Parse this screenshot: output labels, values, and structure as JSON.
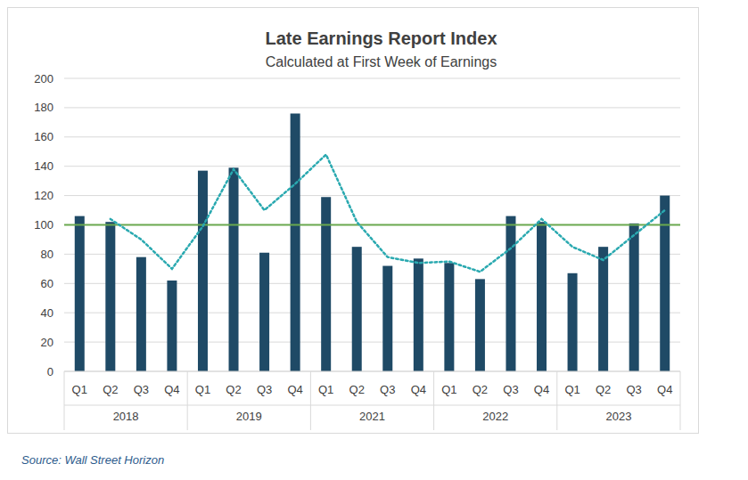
{
  "chart_data": {
    "type": "bar",
    "title": "Late Earnings Report Index",
    "subtitle": "Calculated at First Week of Earnings",
    "source": "Source: Wall Street Horizon",
    "categories": [
      "Q1",
      "Q2",
      "Q3",
      "Q4",
      "Q1",
      "Q2",
      "Q3",
      "Q4",
      "Q1",
      "Q2",
      "Q3",
      "Q4",
      "Q1",
      "Q2",
      "Q3",
      "Q4",
      "Q1",
      "Q2",
      "Q3",
      "Q4"
    ],
    "groups": [
      "2018",
      "2019",
      "2021",
      "2022",
      "2023"
    ],
    "series": [
      {
        "type": "bar",
        "color": "#1f4a66",
        "values": [
          106,
          102,
          78,
          62,
          137,
          139,
          81,
          176,
          119,
          85,
          72,
          77,
          74,
          63,
          106,
          102,
          67,
          85,
          101,
          120
        ]
      },
      {
        "type": "line",
        "color": "#2aa9b0",
        "line_style": "dotted",
        "values": [
          null,
          104,
          90,
          70,
          99,
          138,
          110,
          128,
          148,
          102,
          78,
          74,
          75,
          68,
          84,
          104,
          85,
          76,
          93,
          110
        ]
      }
    ],
    "reference_line": {
      "value": 100,
      "color": "#6aa84f"
    },
    "ylim": [
      0,
      200
    ],
    "yticks": [
      0,
      20,
      40,
      60,
      80,
      100,
      120,
      140,
      160,
      180,
      200
    ],
    "grid": true
  }
}
